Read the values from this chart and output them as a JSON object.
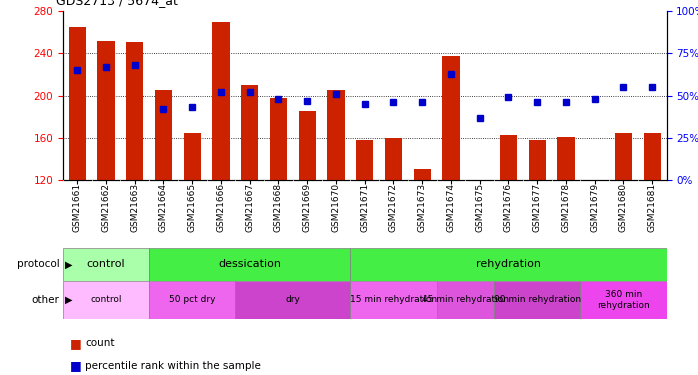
{
  "title": "GDS2713 / 5674_at",
  "samples": [
    "GSM21661",
    "GSM21662",
    "GSM21663",
    "GSM21664",
    "GSM21665",
    "GSM21666",
    "GSM21667",
    "GSM21668",
    "GSM21669",
    "GSM21670",
    "GSM21671",
    "GSM21672",
    "GSM21673",
    "GSM21674",
    "GSM21675",
    "GSM21676",
    "GSM21677",
    "GSM21678",
    "GSM21679",
    "GSM21680",
    "GSM21681"
  ],
  "bar_values": [
    265,
    252,
    251,
    205,
    165,
    270,
    210,
    198,
    185,
    205,
    158,
    160,
    130,
    238,
    120,
    163,
    158,
    161,
    120,
    165,
    165
  ],
  "percentile_values": [
    65,
    67,
    68,
    42,
    43,
    52,
    52,
    48,
    47,
    51,
    45,
    46,
    46,
    63,
    37,
    49,
    46,
    46,
    48,
    55,
    55
  ],
  "ylim_left": [
    120,
    280
  ],
  "ylim_right": [
    0,
    100
  ],
  "yticks_left": [
    120,
    160,
    200,
    240,
    280
  ],
  "yticks_right": [
    0,
    25,
    50,
    75,
    100
  ],
  "ytick_labels_right": [
    "0%",
    "25%",
    "50%",
    "75%",
    "100%"
  ],
  "bar_color": "#cc2200",
  "dot_color": "#0000cc",
  "protocol_defs": [
    {
      "label": "control",
      "start": 0,
      "end": 2,
      "color": "#aaffaa"
    },
    {
      "label": "dessication",
      "start": 3,
      "end": 9,
      "color": "#44ee44"
    },
    {
      "label": "rehydration",
      "start": 10,
      "end": 20,
      "color": "#44ee44"
    }
  ],
  "other_defs": [
    {
      "label": "control",
      "start": 0,
      "end": 2,
      "color": "#ffbbff"
    },
    {
      "label": "50 pct dry",
      "start": 3,
      "end": 5,
      "color": "#ee66ee"
    },
    {
      "label": "dry",
      "start": 6,
      "end": 9,
      "color": "#cc44cc"
    },
    {
      "label": "15 min rehydration",
      "start": 10,
      "end": 12,
      "color": "#ee66ee"
    },
    {
      "label": "45 min rehydration",
      "start": 13,
      "end": 14,
      "color": "#dd55dd"
    },
    {
      "label": "90 min rehydration",
      "start": 15,
      "end": 17,
      "color": "#cc44cc"
    },
    {
      "label": "360 min\nrehydration",
      "start": 18,
      "end": 20,
      "color": "#ee44ee"
    }
  ],
  "grid_yticks": [
    160,
    200,
    240
  ],
  "xtick_bg_color": "#cccccc",
  "legend_count_color": "#cc2200",
  "legend_pct_color": "#0000cc"
}
